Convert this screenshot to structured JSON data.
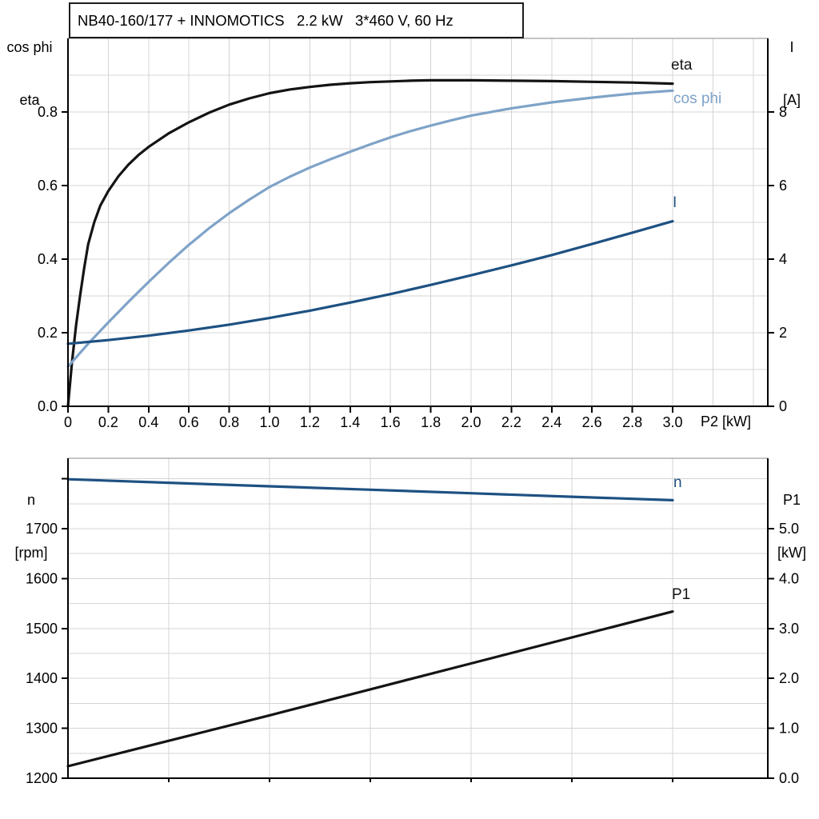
{
  "colors": {
    "black": "#141414",
    "light_blue": "#7fa3c8",
    "dark_blue": "#1e5182",
    "grid": "#d4d4d4",
    "frame": "#8a8a8a",
    "axis": "#000000"
  },
  "chart_data": [
    {
      "id": "top",
      "type": "line",
      "title": "NB40-160/177 + INNOMOTICS   2.2 kW   3*460 V, 60 Hz",
      "xlabel": "P2 [kW]",
      "y_left_title": [
        "cos phi",
        "eta"
      ],
      "y_right_title": [
        "I",
        "[A]"
      ],
      "xlim": [
        0,
        3.47
      ],
      "ylim_left": [
        0,
        1.0
      ],
      "ylim_right": [
        0,
        10
      ],
      "grid": {
        "x_step": 0.2,
        "x_max": 3.4,
        "y_left_step": 0.1,
        "y_left_max": 0.9
      },
      "x_ticks": [
        {
          "v": 0,
          "label": "0"
        },
        {
          "v": 0.2,
          "label": "0.2"
        },
        {
          "v": 0.4,
          "label": "0.4"
        },
        {
          "v": 0.6,
          "label": "0.6"
        },
        {
          "v": 0.8,
          "label": "0.8"
        },
        {
          "v": 1.0,
          "label": "1.0"
        },
        {
          "v": 1.2,
          "label": "1.2"
        },
        {
          "v": 1.4,
          "label": "1.4"
        },
        {
          "v": 1.6,
          "label": "1.6"
        },
        {
          "v": 1.8,
          "label": "1.8"
        },
        {
          "v": 2.0,
          "label": "2.0"
        },
        {
          "v": 2.2,
          "label": "2.2"
        },
        {
          "v": 2.4,
          "label": "2.4"
        },
        {
          "v": 2.6,
          "label": "2.6"
        },
        {
          "v": 2.8,
          "label": "2.8"
        },
        {
          "v": 3.0,
          "label": "3.0"
        }
      ],
      "y_ticks_left": [
        {
          "v": 0.0,
          "label": "0.0"
        },
        {
          "v": 0.2,
          "label": "0.2"
        },
        {
          "v": 0.4,
          "label": "0.4"
        },
        {
          "v": 0.6,
          "label": "0.6"
        },
        {
          "v": 0.8,
          "label": "0.8"
        }
      ],
      "y_ticks_right": [
        {
          "v": 0,
          "label": "0"
        },
        {
          "v": 2,
          "label": "2"
        },
        {
          "v": 4,
          "label": "4"
        },
        {
          "v": 6,
          "label": "6"
        },
        {
          "v": 8,
          "label": "8"
        }
      ],
      "series": [
        {
          "name": "eta",
          "axis": "left",
          "color_key": "black",
          "points": [
            [
              0,
              0
            ],
            [
              0.02,
              0.12
            ],
            [
              0.04,
              0.22
            ],
            [
              0.06,
              0.3
            ],
            [
              0.08,
              0.375
            ],
            [
              0.1,
              0.44
            ],
            [
              0.13,
              0.5
            ],
            [
              0.16,
              0.545
            ],
            [
              0.2,
              0.585
            ],
            [
              0.25,
              0.625
            ],
            [
              0.3,
              0.657
            ],
            [
              0.35,
              0.683
            ],
            [
              0.4,
              0.705
            ],
            [
              0.5,
              0.742
            ],
            [
              0.6,
              0.772
            ],
            [
              0.7,
              0.798
            ],
            [
              0.8,
              0.82
            ],
            [
              0.9,
              0.837
            ],
            [
              1.0,
              0.851
            ],
            [
              1.1,
              0.861
            ],
            [
              1.2,
              0.868
            ],
            [
              1.3,
              0.874
            ],
            [
              1.4,
              0.878
            ],
            [
              1.5,
              0.881
            ],
            [
              1.6,
              0.883
            ],
            [
              1.7,
              0.885
            ],
            [
              1.8,
              0.886
            ],
            [
              1.9,
              0.886
            ],
            [
              2.0,
              0.886
            ],
            [
              2.2,
              0.885
            ],
            [
              2.4,
              0.884
            ],
            [
              2.6,
              0.882
            ],
            [
              2.8,
              0.88
            ],
            [
              3.0,
              0.877
            ]
          ]
        },
        {
          "name": "cos phi",
          "axis": "left",
          "color_key": "light_blue",
          "points": [
            [
              0,
              0.108
            ],
            [
              0.1,
              0.17
            ],
            [
              0.2,
              0.228
            ],
            [
              0.3,
              0.284
            ],
            [
              0.4,
              0.338
            ],
            [
              0.5,
              0.39
            ],
            [
              0.6,
              0.439
            ],
            [
              0.7,
              0.484
            ],
            [
              0.8,
              0.525
            ],
            [
              0.9,
              0.562
            ],
            [
              1.0,
              0.596
            ],
            [
              1.1,
              0.624
            ],
            [
              1.2,
              0.649
            ],
            [
              1.3,
              0.671
            ],
            [
              1.4,
              0.692
            ],
            [
              1.5,
              0.712
            ],
            [
              1.6,
              0.731
            ],
            [
              1.7,
              0.748
            ],
            [
              1.8,
              0.763
            ],
            [
              1.9,
              0.777
            ],
            [
              2.0,
              0.79
            ],
            [
              2.2,
              0.81
            ],
            [
              2.4,
              0.826
            ],
            [
              2.6,
              0.839
            ],
            [
              2.8,
              0.85
            ],
            [
              3.0,
              0.858
            ]
          ]
        },
        {
          "name": "I",
          "axis": "right",
          "color_key": "dark_blue",
          "points": [
            [
              0,
              1.7
            ],
            [
              0.2,
              1.8
            ],
            [
              0.4,
              1.92
            ],
            [
              0.6,
              2.06
            ],
            [
              0.8,
              2.22
            ],
            [
              1.0,
              2.4
            ],
            [
              1.2,
              2.6
            ],
            [
              1.4,
              2.82
            ],
            [
              1.6,
              3.05
            ],
            [
              1.8,
              3.3
            ],
            [
              2.0,
              3.56
            ],
            [
              2.2,
              3.83
            ],
            [
              2.4,
              4.11
            ],
            [
              2.6,
              4.41
            ],
            [
              2.8,
              4.72
            ],
            [
              3.0,
              5.03
            ]
          ]
        }
      ]
    },
    {
      "id": "bottom",
      "type": "line",
      "xlabel": "",
      "y_left_title": [
        "n",
        "[rpm]"
      ],
      "y_right_title": [
        "P1",
        "[kW]"
      ],
      "xlim": [
        0,
        3.47
      ],
      "ylim_left": [
        1200,
        1841
      ],
      "ylim_right": [
        0,
        6.41
      ],
      "grid": {
        "x_step": 0.5,
        "x_max": 3.0,
        "y_right_step": 0.5,
        "y_right_max": 6.0
      },
      "x_ticks": [
        {
          "v": 0.5,
          "label": ""
        },
        {
          "v": 1.0,
          "label": ""
        },
        {
          "v": 1.5,
          "label": ""
        },
        {
          "v": 2.0,
          "label": ""
        },
        {
          "v": 2.5,
          "label": ""
        },
        {
          "v": 3.0,
          "label": ""
        }
      ],
      "y_ticks_left": [
        {
          "v": 1200,
          "label": "1200"
        },
        {
          "v": 1300,
          "label": "1300"
        },
        {
          "v": 1400,
          "label": "1400"
        },
        {
          "v": 1500,
          "label": "1500"
        },
        {
          "v": 1600,
          "label": "1600"
        },
        {
          "v": 1700,
          "label": "1700"
        },
        {
          "v": 1800,
          "label": ""
        }
      ],
      "y_ticks_right": [
        {
          "v": 0,
          "label": "0.0"
        },
        {
          "v": 1,
          "label": "1.0"
        },
        {
          "v": 2,
          "label": "2.0"
        },
        {
          "v": 3,
          "label": "3.0"
        },
        {
          "v": 4,
          "label": "4.0"
        },
        {
          "v": 5,
          "label": "5.0"
        }
      ],
      "series": [
        {
          "name": "n",
          "axis": "left",
          "color_key": "dark_blue",
          "points": [
            [
              0,
              1799
            ],
            [
              0.5,
              1792
            ],
            [
              1.0,
              1785
            ],
            [
              1.5,
              1778
            ],
            [
              2.0,
              1771
            ],
            [
              2.5,
              1764
            ],
            [
              3.0,
              1757
            ]
          ]
        },
        {
          "name": "P1",
          "axis": "right",
          "color_key": "black",
          "points": [
            [
              0,
              0.24
            ],
            [
              0.5,
              0.75
            ],
            [
              1.0,
              1.26
            ],
            [
              1.5,
              1.78
            ],
            [
              2.0,
              2.3
            ],
            [
              2.5,
              2.82
            ],
            [
              3.0,
              3.34
            ]
          ]
        }
      ]
    }
  ]
}
